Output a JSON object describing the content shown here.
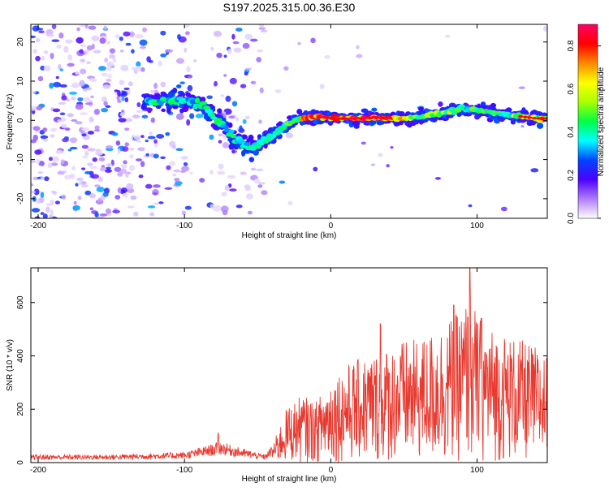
{
  "title": "S197.2025.315.00.36.E30",
  "chart_data": [
    {
      "type": "heatmap",
      "title": "S197.2025.315.00.36.E30",
      "xlabel": "Height of straight line (km)",
      "ylabel": "Frequency (Hz)",
      "xlim": [
        -205,
        148
      ],
      "ylim": [
        -25,
        24.5
      ],
      "xticks": [
        -200,
        -100,
        0,
        100
      ],
      "yticks": [
        -20,
        -10,
        0,
        10,
        20
      ],
      "ridge": {
        "x": [
          -125,
          -115,
          -105,
          -95,
          -85,
          -75,
          -65,
          -55,
          -48,
          -40,
          -30,
          -20,
          -10,
          0,
          10,
          20,
          30,
          40,
          50,
          60,
          70,
          80,
          90,
          100,
          110,
          120,
          130,
          140,
          148
        ],
        "y": [
          5,
          5,
          5,
          5,
          3,
          -1,
          -5,
          -7,
          -6,
          -4,
          -1,
          0.5,
          1,
          0.5,
          0.5,
          0.5,
          0.8,
          0.5,
          0.5,
          0.8,
          1.5,
          2,
          3,
          2.5,
          2,
          1.5,
          1,
          0.5,
          0.5
        ]
      },
      "colorbar": {
        "label": "Normalized spectral amplitude",
        "range": [
          0,
          0.9
        ],
        "ticks": [
          0.0,
          0.2,
          0.4,
          0.6,
          0.8
        ],
        "tick_labels": [
          "0.0",
          "0.2",
          "0.4",
          "0.6",
          "0.8"
        ],
        "colors": [
          "#ffffff",
          "#b07cff",
          "#4c00ff",
          "#0044ff",
          "#00ffff",
          "#00ff44",
          "#aaff00",
          "#ffff00",
          "#ff8800",
          "#ff0000",
          "#ff0066"
        ]
      }
    },
    {
      "type": "line",
      "xlabel": "Height of straight line (km)",
      "ylabel": "SNR (10 * v/v)",
      "xlim": [
        -205,
        148
      ],
      "ylim": [
        0,
        730
      ],
      "xticks": [
        -200,
        -100,
        0,
        100
      ],
      "yticks": [
        0,
        200,
        400,
        600
      ],
      "color": "#e83a30",
      "envelope": {
        "x": [
          -205,
          -150,
          -100,
          -90,
          -75,
          -65,
          -45,
          -38,
          -30,
          -20,
          -10,
          0,
          10,
          20,
          30,
          40,
          50,
          60,
          70,
          80,
          85,
          90,
          95,
          100,
          110,
          120,
          130,
          140,
          148
        ],
        "y": [
          30,
          30,
          40,
          55,
          80,
          60,
          30,
          80,
          180,
          220,
          200,
          280,
          320,
          340,
          360,
          380,
          400,
          400,
          430,
          470,
          480,
          500,
          560,
          480,
          440,
          420,
          400,
          380,
          350
        ]
      },
      "peaks": [
        {
          "x": -77,
          "y": 110
        },
        {
          "x": 34,
          "y": 520
        },
        {
          "x": 84,
          "y": 590
        },
        {
          "x": 95,
          "y": 730
        },
        {
          "x": 103,
          "y": 540
        }
      ]
    }
  ]
}
